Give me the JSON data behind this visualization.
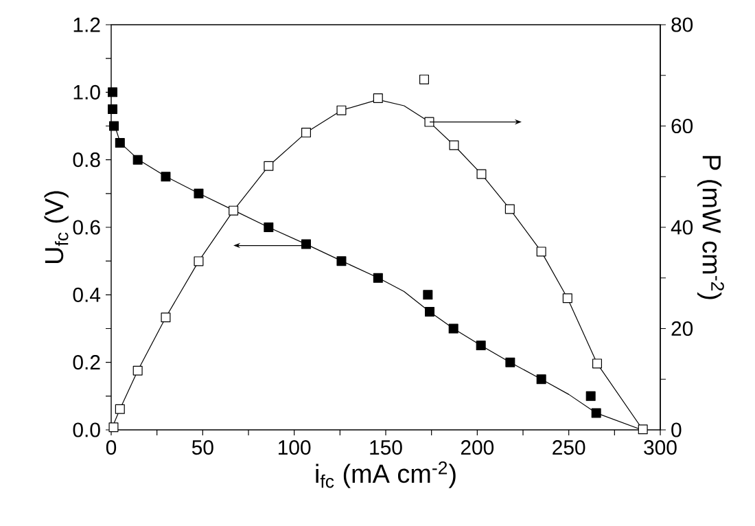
{
  "chart_data": {
    "type": "scatter",
    "xlabel": "i$_{fc}$ (mA cm$^{-2}$)",
    "ylabel": "U$_{fc}$ (V)",
    "y2label": "P (mW cm$^{-2}$)",
    "xlim": [
      0,
      300
    ],
    "ylim": [
      0,
      1.2
    ],
    "y2lim": [
      0,
      80
    ],
    "xticks": [
      0,
      {
        "value": 25,
        "label": null
      },
      50,
      {
        "value": 75,
        "label": null
      },
      100,
      {
        "value": 125,
        "label": null
      },
      150,
      {
        "value": 175,
        "label": null
      },
      200,
      {
        "value": 225,
        "label": null
      },
      250,
      {
        "value": 275,
        "label": null
      },
      300
    ],
    "yticks": [
      {
        "value": 0,
        "label": "0.0"
      },
      {
        "value": 0.1,
        "label": null
      },
      {
        "value": 0.2,
        "label": "0.2"
      },
      {
        "value": 0.3,
        "label": null
      },
      {
        "value": 0.4,
        "label": "0.4"
      },
      {
        "value": 0.5,
        "label": null
      },
      {
        "value": 0.6,
        "label": "0.6"
      },
      {
        "value": 0.7,
        "label": null
      },
      {
        "value": 0.8,
        "label": "0.8"
      },
      {
        "value": 0.9,
        "label": null
      },
      {
        "value": 1.0,
        "label": "1.0"
      },
      {
        "value": 1.1,
        "label": null
      },
      {
        "value": 1.2,
        "label": "1.2"
      }
    ],
    "y2ticks": [
      0,
      {
        "value": 10,
        "label": null
      },
      20,
      {
        "value": 30,
        "label": null
      },
      40,
      {
        "value": 50,
        "label": null
      },
      60,
      {
        "value": 70,
        "label": null
      },
      80
    ],
    "marker": "square",
    "grid": false,
    "series": [
      {
        "color": "#000000",
        "x": [
          0.75,
          0.75,
          1.5,
          4.8,
          14.5,
          29.8,
          47.8,
          86,
          106.5,
          125.8,
          145.8,
          173,
          174,
          187,
          202,
          218,
          235,
          262,
          265
        ],
        "values": [
          1.0,
          0.95,
          0.9,
          0.85,
          0.8,
          0.75,
          0.7,
          0.6,
          0.55,
          0.5,
          0.45,
          0.4,
          0.35,
          0.3,
          0.25,
          0.2,
          0.15,
          0.1,
          0.05
        ]
      },
      {
        "type": "line",
        "color": "#000000",
        "marker": "none",
        "x": [
          2,
          5,
          15,
          30,
          48,
          67,
          86,
          106.5,
          126,
          146,
          160,
          174,
          187,
          202,
          218,
          235,
          250,
          265,
          290
        ],
        "values": [
          0.9,
          0.85,
          0.8,
          0.75,
          0.7,
          0.65,
          0.6,
          0.55,
          0.5,
          0.45,
          0.41,
          0.35,
          0.3,
          0.25,
          0.2,
          0.15,
          0.105,
          0.05,
          0
        ]
      },
      {
        "axis": "y2",
        "color": "#ffffff",
        "x": [
          1.3,
          4.8,
          14.5,
          29.8,
          47.8,
          66.8,
          86,
          106.5,
          125.8,
          145.8,
          171,
          173.8,
          187.3,
          202.3,
          217.8,
          235,
          249.3,
          265.5,
          290.5
        ],
        "values": [
          0.5,
          4.1,
          11.7,
          22.2,
          33.3,
          43.3,
          52.1,
          58.7,
          63.1,
          65.5,
          69.2,
          60.8,
          56.2,
          50.5,
          43.6,
          35.2,
          26.0,
          13.1,
          0.1
        ]
      },
      {
        "type": "line",
        "axis": "y2",
        "color": "#000000",
        "marker": "none",
        "x": [
          0,
          4.8,
          14.5,
          29.8,
          47.8,
          66.8,
          86,
          106.5,
          125.8,
          145.8,
          160,
          173.8,
          187.3,
          202.3,
          217.8,
          235,
          249.3,
          265.5,
          290.5
        ],
        "values": [
          0,
          4.1,
          11.7,
          22.2,
          33.3,
          43.3,
          52.1,
          58.7,
          63.1,
          65.2,
          64,
          60.8,
          56.2,
          50.5,
          43.6,
          35.2,
          26.0,
          13.1,
          0
        ]
      }
    ]
  }
}
